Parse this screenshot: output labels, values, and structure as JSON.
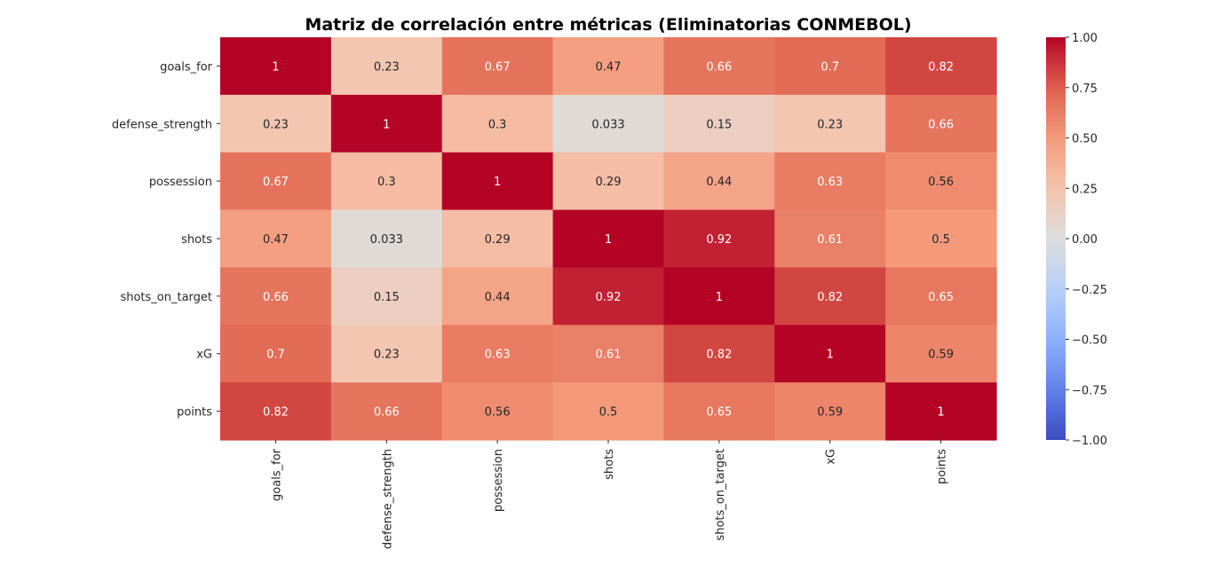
{
  "chart_data": {
    "type": "heatmap",
    "title": "Matriz de correlación entre métricas (Eliminatorias CONMEBOL)",
    "rows": [
      "goals_for",
      "defense_strength",
      "possession",
      "shots",
      "shots_on_target",
      "xG",
      "points"
    ],
    "columns": [
      "goals_for",
      "defense_strength",
      "possession",
      "shots",
      "shots_on_target",
      "xG",
      "points"
    ],
    "values": [
      [
        1,
        0.23,
        0.67,
        0.47,
        0.66,
        0.7,
        0.82
      ],
      [
        0.23,
        1,
        0.3,
        0.033,
        0.15,
        0.23,
        0.66
      ],
      [
        0.67,
        0.3,
        1,
        0.29,
        0.44,
        0.63,
        0.56
      ],
      [
        0.47,
        0.033,
        0.29,
        1,
        0.92,
        0.61,
        0.5
      ],
      [
        0.66,
        0.15,
        0.44,
        0.92,
        1,
        0.82,
        0.65
      ],
      [
        0.7,
        0.23,
        0.63,
        0.61,
        0.82,
        1,
        0.59
      ],
      [
        0.82,
        0.66,
        0.56,
        0.5,
        0.65,
        0.59,
        1
      ]
    ],
    "cell_labels": [
      [
        "1",
        "0.23",
        "0.67",
        "0.47",
        "0.66",
        "0.7",
        "0.82"
      ],
      [
        "0.23",
        "1",
        "0.3",
        "0.033",
        "0.15",
        "0.23",
        "0.66"
      ],
      [
        "0.67",
        "0.3",
        "1",
        "0.29",
        "0.44",
        "0.63",
        "0.56"
      ],
      [
        "0.47",
        "0.033",
        "0.29",
        "1",
        "0.92",
        "0.61",
        "0.5"
      ],
      [
        "0.66",
        "0.15",
        "0.44",
        "0.92",
        "1",
        "0.82",
        "0.65"
      ],
      [
        "0.7",
        "0.23",
        "0.63",
        "0.61",
        "0.82",
        "1",
        "0.59"
      ],
      [
        "0.82",
        "0.66",
        "0.56",
        "0.5",
        "0.65",
        "0.59",
        "1"
      ]
    ],
    "colormap": "coolwarm",
    "vmin": -1,
    "vmax": 1,
    "colorbar_ticks": [
      1.0,
      0.75,
      0.5,
      0.25,
      0.0,
      -0.25,
      -0.5,
      -0.75,
      -1.0
    ],
    "colorbar_tick_labels": [
      "1.00",
      "0.75",
      "0.50",
      "0.25",
      "0.00",
      "−0.25",
      "−0.50",
      "−0.75",
      "−1.00"
    ],
    "colors": {
      "low": "#3b4cc0",
      "mid": "#dddddd",
      "high": "#b40426"
    }
  }
}
